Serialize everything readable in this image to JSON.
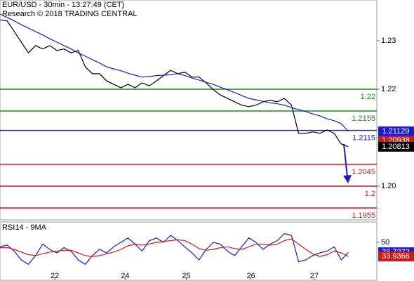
{
  "chart_data": [
    {
      "type": "line",
      "title": "EUR/USD - 30min - 13:27:49 (CET)",
      "subtitle": "Research © 2018 TRADING CENTRAL",
      "x": [
        0,
        1,
        2,
        3,
        4,
        5,
        6,
        7,
        8,
        9,
        10,
        11,
        12,
        13,
        14,
        15,
        16,
        17,
        18,
        19,
        20,
        21,
        22,
        23,
        24,
        25,
        26,
        27,
        28,
        29,
        30,
        31,
        32,
        33,
        34,
        35,
        36,
        37,
        38,
        39,
        40,
        41,
        42,
        43,
        44,
        45,
        46,
        47,
        48,
        49
      ],
      "xlim": [
        0,
        53
      ],
      "xticks": [
        {
          "value": 7.7,
          "label": "22"
        },
        {
          "value": 17.6,
          "label": "24"
        },
        {
          "value": 26.2,
          "label": "25"
        },
        {
          "value": 35.3,
          "label": "26"
        },
        {
          "value": 44.2,
          "label": "27"
        }
      ],
      "ylim": [
        1.19304,
        1.2384
      ],
      "yticks": [
        {
          "value": 1.2,
          "label": "1.20"
        },
        1.21,
        1.22,
        1.23
      ],
      "series": [
        {
          "name": "EUR/USD",
          "color": "#000000",
          "values": [
            1.2343,
            1.2341,
            1.2319,
            1.2297,
            1.2275,
            1.229,
            1.2283,
            1.229,
            1.228,
            1.2283,
            1.2275,
            1.228,
            1.2246,
            1.2232,
            1.2232,
            1.2217,
            1.221,
            1.2203,
            1.221,
            1.2203,
            1.2213,
            1.2207,
            1.2217,
            1.2228,
            1.2239,
            1.2232,
            1.2235,
            1.2225,
            1.2225,
            1.2213,
            1.2199,
            1.2188,
            1.2181,
            1.2174,
            1.2167,
            1.2164,
            1.2167,
            1.2174,
            1.2177,
            1.2174,
            1.2181,
            1.2167,
            1.2109,
            1.2109,
            1.2112,
            1.2109,
            1.2116,
            1.2109,
            1.2087,
            1.20813
          ]
        },
        {
          "name": "MA",
          "color": "#1a1acc",
          "values": [
            1.2355,
            1.2348,
            1.2341,
            1.2333,
            1.2326,
            1.2319,
            1.2312,
            1.2304,
            1.2297,
            1.229,
            1.2283,
            1.2275,
            1.2268,
            1.2261,
            1.2254,
            1.2246,
            1.2242,
            1.2238,
            1.2233,
            1.2229,
            1.2225,
            1.2226,
            1.2228,
            1.2229,
            1.223,
            1.2232,
            1.2228,
            1.2223,
            1.2219,
            1.2214,
            1.221,
            1.2204,
            1.2199,
            1.2193,
            1.2187,
            1.2181,
            1.2178,
            1.2175,
            1.2172,
            1.217,
            1.2167,
            1.2162,
            1.2158,
            1.2154,
            1.2149,
            1.2145,
            1.2139,
            1.2135,
            1.2129,
            1.21129
          ]
        }
      ],
      "levels": [
        {
          "value": 1.22,
          "color": "#1a8a1a"
        },
        {
          "value": 1.2155,
          "color": "#1a8a1a"
        },
        {
          "value": 1.2115,
          "color": "#1a1acc"
        },
        {
          "value": 1.2045,
          "color": "#cc1a1a"
        },
        {
          "value": 1.2,
          "color": "#cc1a1a"
        },
        {
          "value": 1.1955,
          "color": "#cc1a1a"
        }
      ],
      "price_labels": [
        {
          "value": 1.21129,
          "color": "#1a1acc"
        },
        {
          "value": 1.20938,
          "color": "#cc1a1a"
        },
        {
          "value": 1.20813,
          "color": "#000000"
        }
      ]
    },
    {
      "type": "line",
      "title": "RSI14 - 9MA",
      "x": [
        0,
        1,
        2,
        3,
        4,
        5,
        6,
        7,
        8,
        9,
        10,
        11,
        12,
        13,
        14,
        15,
        16,
        17,
        18,
        19,
        20,
        21,
        22,
        23,
        24,
        25,
        26,
        27,
        28,
        29,
        30,
        31,
        32,
        33,
        34,
        35,
        36,
        37,
        38,
        39,
        40,
        41,
        42,
        43,
        44,
        45,
        46,
        47,
        48,
        49
      ],
      "xlim": [
        0,
        53
      ],
      "ylim": [
        10,
        70
      ],
      "yticks": [
        50
      ],
      "series": [
        {
          "name": "RSI14",
          "color": "#1a1acc",
          "values": [
            45,
            47,
            40,
            30,
            25,
            35,
            48,
            42,
            38,
            44,
            40,
            30,
            25,
            35,
            42,
            38,
            45,
            50,
            55,
            48,
            40,
            52,
            55,
            50,
            58,
            52,
            45,
            38,
            30,
            42,
            50,
            48,
            40,
            35,
            45,
            55,
            50,
            42,
            48,
            52,
            60,
            58,
            28,
            30,
            35,
            38,
            40,
            45,
            30,
            38.7272
          ]
        },
        {
          "name": "9MA",
          "color": "#cc1a1a",
          "values": [
            44,
            44,
            42,
            39,
            36,
            35,
            37,
            39,
            40,
            41,
            41,
            38,
            35,
            34,
            35,
            37,
            39,
            42,
            46,
            48,
            47,
            48,
            50,
            51,
            52,
            53,
            52,
            48,
            43,
            41,
            42,
            44,
            45,
            43,
            42,
            45,
            48,
            48,
            47,
            48,
            52,
            54,
            48,
            42,
            37,
            34,
            36,
            40,
            38,
            33.9366
          ]
        }
      ],
      "price_labels": [
        {
          "value": 38.7272,
          "color": "#1a1acc"
        },
        {
          "value": 33.9366,
          "color": "#cc1a1a"
        }
      ]
    }
  ]
}
